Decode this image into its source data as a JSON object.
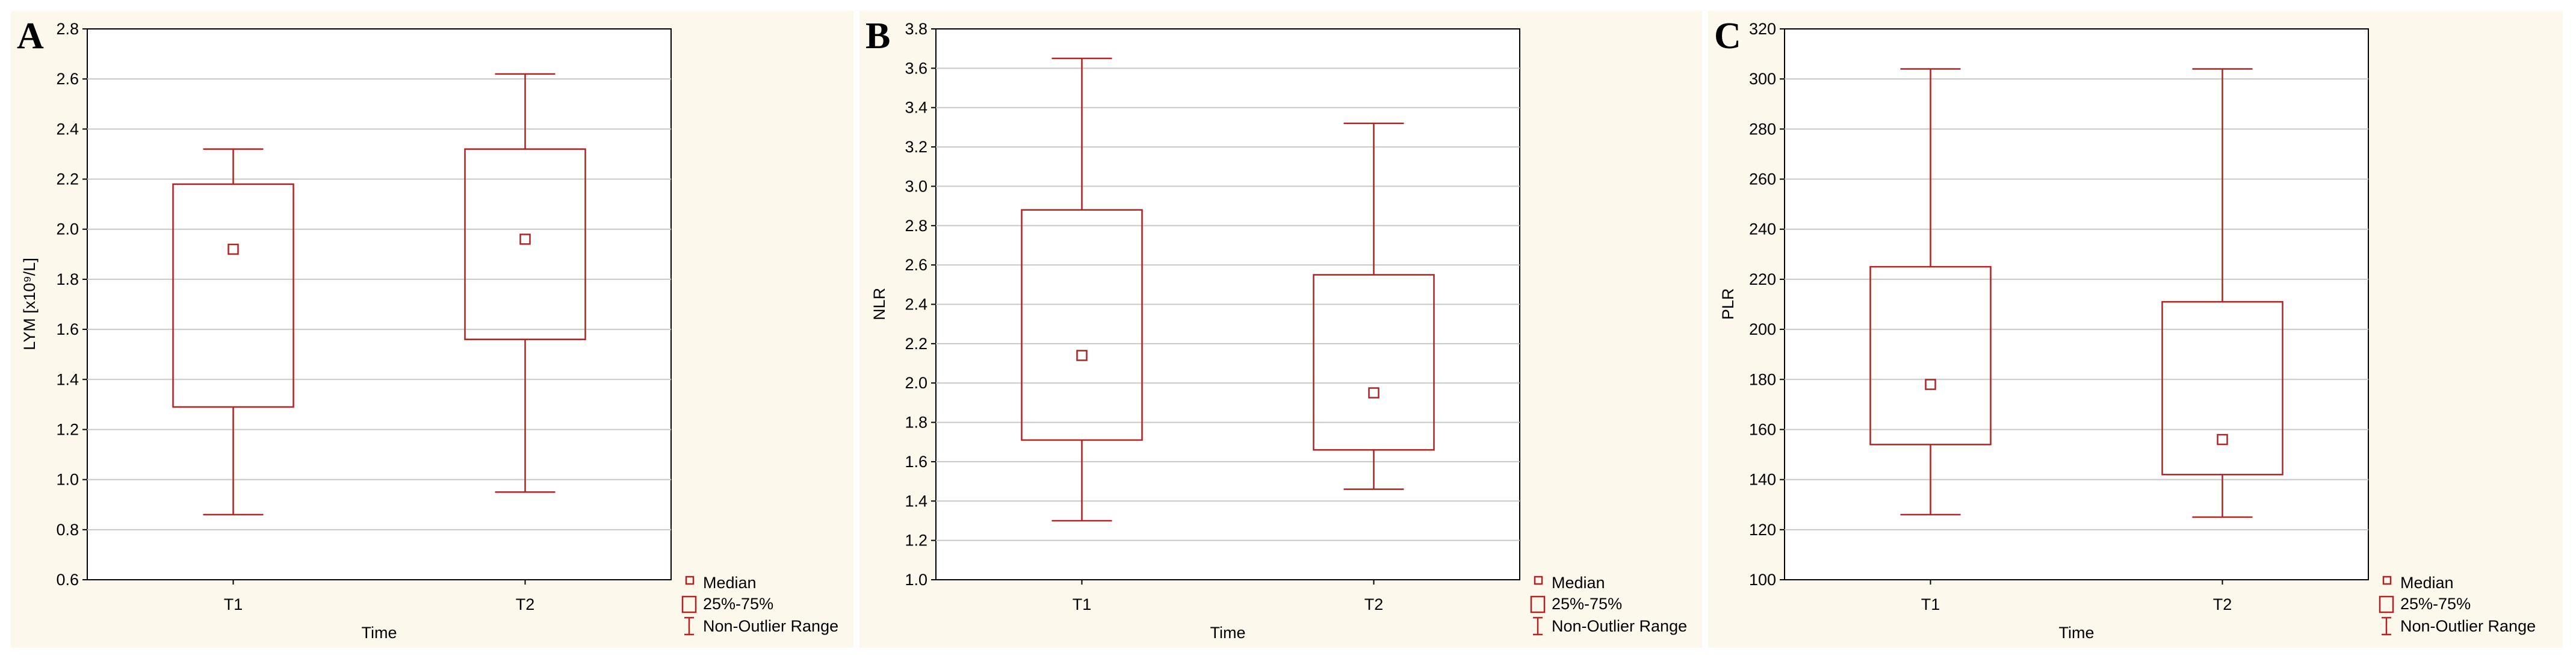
{
  "colors": {
    "box": "#b22222",
    "panel_bg": "#fdf8ec",
    "grid": "#c8c8c8",
    "axis": "#000000"
  },
  "legend": {
    "median": "Median",
    "iqr": "25%-75%",
    "range": "Non-Outlier Range"
  },
  "chart_data": [
    {
      "panel": "A",
      "type": "boxplot",
      "xlabel": "Time",
      "ylabel": "LYM [x10⁹/L]",
      "ylim": [
        0.6,
        2.8
      ],
      "yticks": [
        "0.6",
        "0.8",
        "1.0",
        "1.2",
        "1.4",
        "1.6",
        "1.8",
        "2.0",
        "2.2",
        "2.4",
        "2.6",
        "2.8"
      ],
      "categories": [
        "T1",
        "T2"
      ],
      "boxes": [
        {
          "category": "T1",
          "whisker_low": 0.86,
          "q1": 1.29,
          "median": 1.92,
          "q3": 2.18,
          "whisker_high": 2.32
        },
        {
          "category": "T2",
          "whisker_low": 0.95,
          "q1": 1.56,
          "median": 1.96,
          "q3": 2.32,
          "whisker_high": 2.62
        }
      ]
    },
    {
      "panel": "B",
      "type": "boxplot",
      "xlabel": "Time",
      "ylabel": "NLR",
      "ylim": [
        1.0,
        3.8
      ],
      "yticks": [
        "1.0",
        "1.2",
        "1.4",
        "1.6",
        "1.8",
        "2.0",
        "2.2",
        "2.4",
        "2.6",
        "2.8",
        "3.0",
        "3.2",
        "3.4",
        "3.6",
        "3.8"
      ],
      "categories": [
        "T1",
        "T2"
      ],
      "boxes": [
        {
          "category": "T1",
          "whisker_low": 1.3,
          "q1": 1.71,
          "median": 2.14,
          "q3": 2.88,
          "whisker_high": 3.65
        },
        {
          "category": "T2",
          "whisker_low": 1.46,
          "q1": 1.66,
          "median": 1.95,
          "q3": 2.55,
          "whisker_high": 3.32
        }
      ]
    },
    {
      "panel": "C",
      "type": "boxplot",
      "xlabel": "Time",
      "ylabel": "PLR",
      "ylim": [
        100,
        320
      ],
      "yticks": [
        "100",
        "120",
        "140",
        "160",
        "180",
        "200",
        "220",
        "240",
        "260",
        "280",
        "300",
        "320"
      ],
      "categories": [
        "T1",
        "T2"
      ],
      "boxes": [
        {
          "category": "T1",
          "whisker_low": 126,
          "q1": 154,
          "median": 178,
          "q3": 225,
          "whisker_high": 304
        },
        {
          "category": "T2",
          "whisker_low": 125,
          "q1": 142,
          "median": 156,
          "q3": 211,
          "whisker_high": 304
        }
      ]
    }
  ]
}
